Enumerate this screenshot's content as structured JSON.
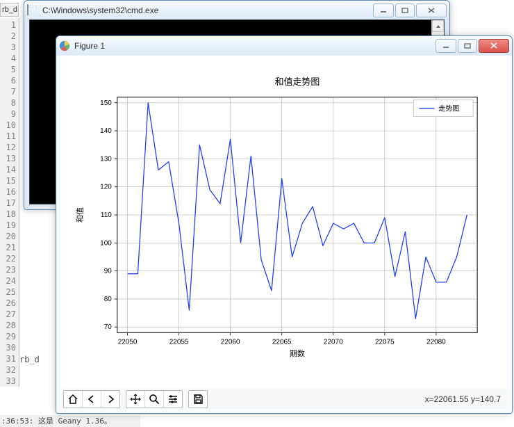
{
  "editor": {
    "tab_sliver": "rb_d",
    "line_numbers": [
      1,
      2,
      3,
      4,
      5,
      6,
      7,
      8,
      9,
      10,
      11,
      12,
      13,
      14,
      15,
      16,
      17,
      18,
      19,
      20,
      21,
      22,
      23,
      24,
      25,
      26,
      27,
      28,
      29,
      30,
      31,
      32,
      33
    ],
    "sliver_text": "rb_d",
    "status_text": ":36:53: 这是 Geany 1.36。"
  },
  "cmd": {
    "title": "C:\\Windows\\system32\\cmd.exe"
  },
  "figure": {
    "title": "Figure 1",
    "status_text": "x=22061.55 y=140.7",
    "chart": {
      "type": "line",
      "title": "和值走势图",
      "title_fontsize": 13,
      "xlabel": "期数",
      "ylabel": "和值",
      "label_fontsize": 11,
      "tick_fontsize": 10,
      "legend_label": "走势图",
      "legend_loc": "upper right",
      "line_color": "#1f3fff",
      "line_width": 1.3,
      "background_color": "#ffffff",
      "axes_facecolor": "#ffffff",
      "grid_color": "#b0b0b0",
      "grid_linewidth": 0.6,
      "spine_color": "#000000",
      "xlim": [
        22049,
        22084
      ],
      "ylim": [
        68,
        152
      ],
      "xticks": [
        22050,
        22055,
        22060,
        22065,
        22070,
        22075,
        22080
      ],
      "yticks": [
        70,
        80,
        90,
        100,
        110,
        120,
        130,
        140,
        150
      ],
      "x": [
        22050,
        22051,
        22052,
        22053,
        22054,
        22055,
        22056,
        22057,
        22058,
        22059,
        22060,
        22061,
        22062,
        22063,
        22064,
        22065,
        22066,
        22067,
        22068,
        22069,
        22070,
        22071,
        22072,
        22073,
        22074,
        22075,
        22076,
        22077,
        22078,
        22079,
        22080,
        22081,
        22082,
        22083
      ],
      "y": [
        89,
        89,
        150,
        126,
        129,
        107,
        76,
        135,
        119,
        114,
        137,
        100,
        131,
        94,
        83,
        123,
        95,
        107,
        113,
        99,
        107,
        105,
        107,
        100,
        100,
        109,
        88,
        104,
        73,
        95,
        86,
        86,
        95,
        110
      ]
    }
  }
}
